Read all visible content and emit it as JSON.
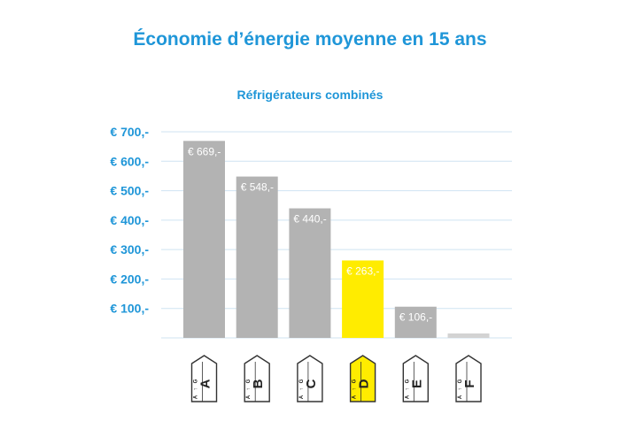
{
  "chart_data": {
    "type": "bar",
    "title": "Économie d’énergie moyenne en 15 ans",
    "subtitle": "Réfrigérateurs combinés",
    "categories": [
      "A",
      "B",
      "C",
      "D",
      "E",
      "F"
    ],
    "values": [
      669,
      548,
      440,
      263,
      106,
      15
    ],
    "value_labels": [
      "€ 669,-",
      "€ 548,-",
      "€ 440,-",
      "€ 263,-",
      "€ 106,-",
      ""
    ],
    "yticks": [
      100,
      200,
      300,
      400,
      500,
      600,
      700
    ],
    "ytick_labels": [
      "€ 100,-",
      "€ 200,-",
      "€ 300,-",
      "€ 400,-",
      "€ 500,-",
      "€ 600,-",
      "€ 700,-"
    ],
    "ylim": [
      0,
      700
    ],
    "grid": true,
    "label_scale": [
      "A",
      "G"
    ],
    "colors": {
      "title": "#1f96d8",
      "bar": "#b3b3b3",
      "bar_highlight": "#ffec00",
      "bar_faint": "#d3d3d3",
      "grid": "#cfe3f2"
    },
    "highlight_category": "D"
  }
}
